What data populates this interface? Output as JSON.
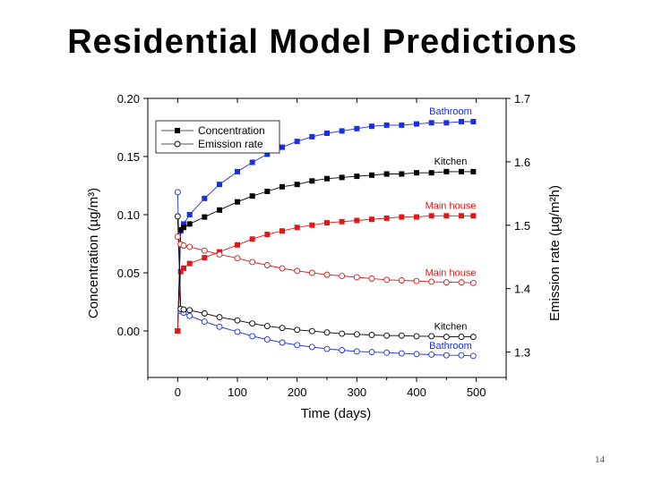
{
  "slide": {
    "title": "Residential Model Predictions",
    "page_number": "14"
  },
  "chart_data": {
    "type": "line",
    "xlabel": "Time (days)",
    "ylabel_left": "Concentration (µg/m³)",
    "ylabel_right": "Emission rate (µg/m²h)",
    "xlim": [
      -50,
      550
    ],
    "xticks": [
      0,
      100,
      200,
      300,
      400,
      500
    ],
    "ylim_left": [
      -0.04,
      0.2
    ],
    "yticks_left": [
      "0.00",
      "0.05",
      "0.10",
      "0.15",
      "0.20"
    ],
    "ylim_right": [
      1.26,
      1.7
    ],
    "yticks_right": [
      "1.3",
      "1.4",
      "1.5",
      "1.6",
      "1.7"
    ],
    "legend": {
      "position": "top-left",
      "entries": [
        "Concentration",
        "Emission rate"
      ]
    },
    "colors": {
      "Bathroom": "#1a2fe0",
      "Kitchen": "#000000",
      "Main house": "#e01818"
    },
    "series": [
      {
        "name": "Bathroom",
        "kind": "Concentration",
        "axis": "left",
        "marker": "square-filled",
        "x": [
          0,
          5,
          10,
          20,
          45,
          70,
          100,
          125,
          150,
          175,
          200,
          225,
          250,
          275,
          300,
          325,
          350,
          375,
          400,
          425,
          450,
          475,
          495
        ],
        "values": [
          0.0,
          0.086,
          0.092,
          0.1,
          0.114,
          0.126,
          0.137,
          0.145,
          0.152,
          0.158,
          0.163,
          0.167,
          0.17,
          0.172,
          0.174,
          0.176,
          0.177,
          0.177,
          0.178,
          0.179,
          0.179,
          0.18,
          0.18
        ]
      },
      {
        "name": "Kitchen",
        "kind": "Concentration",
        "axis": "left",
        "marker": "square-filled",
        "x": [
          0,
          5,
          10,
          20,
          45,
          70,
          100,
          125,
          150,
          175,
          200,
          225,
          250,
          275,
          300,
          325,
          350,
          375,
          400,
          425,
          450,
          475,
          495
        ],
        "values": [
          0.0,
          0.087,
          0.089,
          0.092,
          0.098,
          0.104,
          0.111,
          0.116,
          0.12,
          0.124,
          0.126,
          0.129,
          0.131,
          0.132,
          0.133,
          0.134,
          0.135,
          0.135,
          0.136,
          0.136,
          0.137,
          0.137,
          0.137
        ]
      },
      {
        "name": "Main house",
        "kind": "Concentration",
        "axis": "left",
        "marker": "square-filled",
        "x": [
          0,
          5,
          10,
          20,
          45,
          70,
          100,
          125,
          150,
          175,
          200,
          225,
          250,
          275,
          300,
          325,
          350,
          375,
          400,
          425,
          450,
          475,
          495
        ],
        "values": [
          0.0,
          0.051,
          0.054,
          0.058,
          0.063,
          0.068,
          0.074,
          0.079,
          0.083,
          0.086,
          0.089,
          0.091,
          0.093,
          0.094,
          0.095,
          0.096,
          0.097,
          0.098,
          0.098,
          0.099,
          0.099,
          0.099,
          0.099
        ]
      },
      {
        "name": "Bathroom",
        "kind": "Emission rate",
        "axis": "right",
        "marker": "circle-open",
        "x": [
          0,
          5,
          10,
          20,
          45,
          70,
          100,
          125,
          150,
          175,
          200,
          225,
          250,
          275,
          300,
          325,
          350,
          375,
          400,
          425,
          450,
          475,
          495
        ],
        "values": [
          1.552,
          1.365,
          1.362,
          1.357,
          1.348,
          1.34,
          1.332,
          1.325,
          1.32,
          1.315,
          1.311,
          1.308,
          1.305,
          1.303,
          1.301,
          1.3,
          1.299,
          1.298,
          1.297,
          1.296,
          1.295,
          1.295,
          1.294
        ]
      },
      {
        "name": "Kitchen",
        "kind": "Emission rate",
        "axis": "right",
        "marker": "circle-open",
        "x": [
          0,
          5,
          10,
          20,
          45,
          70,
          100,
          125,
          150,
          175,
          200,
          225,
          250,
          275,
          300,
          325,
          350,
          375,
          400,
          425,
          450,
          475,
          495
        ],
        "values": [
          1.514,
          1.368,
          1.367,
          1.366,
          1.361,
          1.355,
          1.35,
          1.345,
          1.341,
          1.338,
          1.335,
          1.333,
          1.331,
          1.329,
          1.328,
          1.327,
          1.326,
          1.326,
          1.325,
          1.325,
          1.324,
          1.324,
          1.324
        ]
      },
      {
        "name": "Main house",
        "kind": "Emission rate",
        "axis": "right",
        "marker": "circle-open",
        "x": [
          0,
          5,
          10,
          20,
          45,
          70,
          100,
          125,
          150,
          175,
          200,
          225,
          250,
          275,
          300,
          325,
          350,
          375,
          400,
          425,
          450,
          475,
          495
        ],
        "values": [
          1.482,
          1.47,
          1.468,
          1.466,
          1.46,
          1.454,
          1.448,
          1.442,
          1.437,
          1.432,
          1.428,
          1.425,
          1.422,
          1.42,
          1.418,
          1.416,
          1.414,
          1.413,
          1.412,
          1.411,
          1.41,
          1.41,
          1.409
        ]
      }
    ],
    "annotations": [
      {
        "text": "Bathroom",
        "series": "Bathroom",
        "kind": "Concentration"
      },
      {
        "text": "Kitchen",
        "series": "Kitchen",
        "kind": "Concentration"
      },
      {
        "text": "Main house",
        "series": "Main house",
        "kind": "Concentration"
      },
      {
        "text": "Main house",
        "series": "Main house",
        "kind": "Emission rate"
      },
      {
        "text": "Kitchen",
        "series": "Kitchen",
        "kind": "Emission rate"
      },
      {
        "text": "Bathroom",
        "series": "Bathroom",
        "kind": "Emission rate"
      }
    ]
  }
}
